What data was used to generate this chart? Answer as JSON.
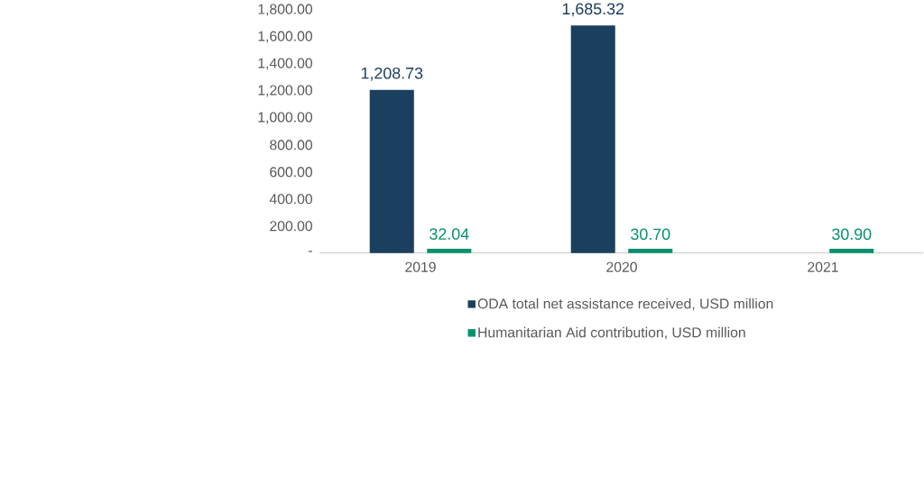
{
  "chart_data": {
    "type": "bar",
    "categories": [
      "2019",
      "2020",
      "2021"
    ],
    "series": [
      {
        "name": "ODA total net assistance received, USD million",
        "color": "#1b3f5e",
        "values": [
          1208.73,
          1685.32,
          null
        ],
        "value_labels": [
          "1,208.73",
          "1,685.32",
          null
        ]
      },
      {
        "name": "Humanitarian Aid contribution, USD million",
        "color": "#00916e",
        "values": [
          32.04,
          30.7,
          30.9
        ],
        "value_labels": [
          "32.04",
          "30.70",
          "30.90"
        ]
      }
    ],
    "ylim": [
      0,
      1800
    ],
    "yticks": [
      {
        "value": 0,
        "label": "-"
      },
      {
        "value": 200,
        "label": "200.00"
      },
      {
        "value": 400,
        "label": "400.00"
      },
      {
        "value": 600,
        "label": "600.00"
      },
      {
        "value": 800,
        "label": "800.00"
      },
      {
        "value": 1000,
        "label": "1,000.00"
      },
      {
        "value": 1200,
        "label": "1,200.00"
      },
      {
        "value": 1400,
        "label": "1,400.00"
      },
      {
        "value": 1600,
        "label": "1,600.00"
      },
      {
        "value": 1800,
        "label": "1,800.00"
      }
    ],
    "grid": false,
    "legend": "bottom"
  }
}
